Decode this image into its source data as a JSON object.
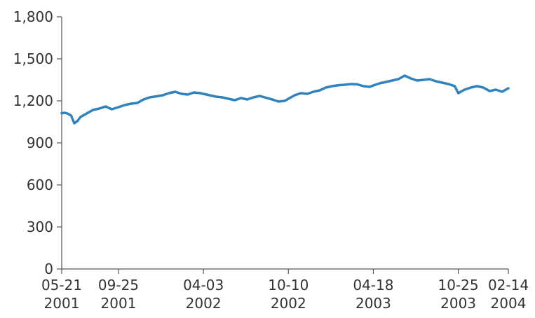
{
  "chart_data": {
    "type": "line",
    "title": "",
    "xlabel": "",
    "ylabel": "",
    "ylim": [
      0,
      1800
    ],
    "y_ticks": [
      "0",
      "300",
      "600",
      "900",
      "1,200",
      "1,500",
      "1,800"
    ],
    "y_tick_values": [
      0,
      300,
      600,
      900,
      1200,
      1500,
      1800
    ],
    "x_range": [
      "2001-05-21",
      "2004-02-14"
    ],
    "x_ticks": [
      {
        "date": "2001-05-21",
        "line1": "05-21",
        "line2": "2001"
      },
      {
        "date": "2001-09-25",
        "line1": "09-25",
        "line2": "2001"
      },
      {
        "date": "2002-04-03",
        "line1": "04-03",
        "line2": "2002"
      },
      {
        "date": "2002-10-10",
        "line1": "10-10",
        "line2": "2002"
      },
      {
        "date": "2003-04-18",
        "line1": "04-18",
        "line2": "2003"
      },
      {
        "date": "2003-10-25",
        "line1": "10-25",
        "line2": "2003"
      },
      {
        "date": "2004-02-14",
        "line1": "02-14",
        "line2": "2004"
      }
    ],
    "grid": false,
    "legend": "none",
    "color": "#3182bd",
    "series": [
      {
        "x": [
          "2001-05-21",
          "2001-05-28",
          "2001-06-04",
          "2001-06-11",
          "2001-06-18",
          "2001-06-25",
          "2001-07-02",
          "2001-07-16",
          "2001-07-30",
          "2001-08-13",
          "2001-08-27",
          "2001-09-10",
          "2001-09-25",
          "2001-10-09",
          "2001-10-23",
          "2001-11-06",
          "2001-11-20",
          "2001-12-04",
          "2001-12-18",
          "2002-01-02",
          "2002-01-16",
          "2002-01-30",
          "2002-02-13",
          "2002-02-27",
          "2002-03-13",
          "2002-03-27",
          "2002-04-03",
          "2002-04-17",
          "2002-05-01",
          "2002-05-15",
          "2002-05-29",
          "2002-06-12",
          "2002-06-26",
          "2002-07-10",
          "2002-07-24",
          "2002-08-07",
          "2002-08-21",
          "2002-09-04",
          "2002-09-18",
          "2002-10-02",
          "2002-10-10",
          "2002-10-24",
          "2002-11-07",
          "2002-11-21",
          "2002-12-05",
          "2002-12-19",
          "2003-01-02",
          "2003-01-16",
          "2003-01-30",
          "2003-02-13",
          "2003-02-27",
          "2003-03-13",
          "2003-03-27",
          "2003-04-10",
          "2003-04-18",
          "2003-05-02",
          "2003-05-16",
          "2003-05-30",
          "2003-06-13",
          "2003-06-27",
          "2003-07-11",
          "2003-07-25",
          "2003-08-08",
          "2003-08-22",
          "2003-09-05",
          "2003-09-19",
          "2003-10-03",
          "2003-10-17",
          "2003-10-25",
          "2003-11-08",
          "2003-11-22",
          "2003-12-06",
          "2003-12-20",
          "2004-01-03",
          "2004-01-17",
          "2004-01-31",
          "2004-02-14"
        ],
        "values": [
          1112,
          1115,
          1108,
          1095,
          1040,
          1055,
          1085,
          1110,
          1135,
          1145,
          1160,
          1140,
          1155,
          1170,
          1180,
          1185,
          1210,
          1225,
          1232,
          1240,
          1255,
          1265,
          1250,
          1245,
          1260,
          1255,
          1250,
          1240,
          1230,
          1225,
          1215,
          1205,
          1220,
          1210,
          1225,
          1235,
          1222,
          1210,
          1195,
          1200,
          1215,
          1240,
          1255,
          1250,
          1265,
          1275,
          1295,
          1305,
          1312,
          1315,
          1320,
          1318,
          1305,
          1300,
          1310,
          1325,
          1335,
          1345,
          1355,
          1380,
          1360,
          1345,
          1350,
          1355,
          1340,
          1330,
          1320,
          1305,
          1255,
          1280,
          1295,
          1305,
          1295,
          1270,
          1280,
          1265,
          1290
        ]
      }
    ]
  }
}
